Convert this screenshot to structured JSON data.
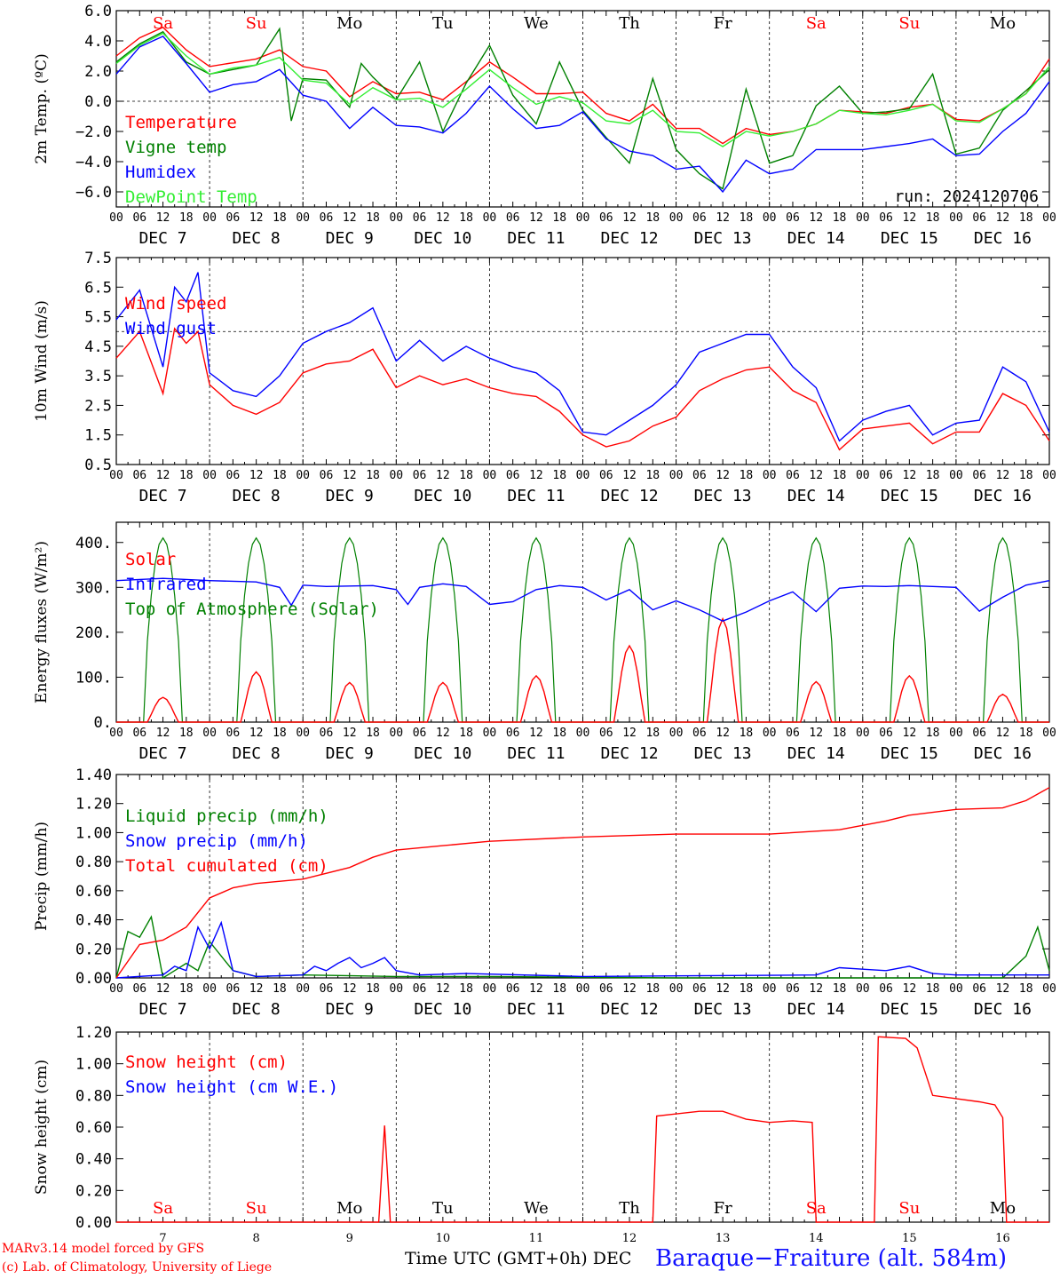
{
  "run_label": "run: 2024120706",
  "footer": {
    "model": "MARv3.14 model forced by GFS",
    "lab": "(c) Lab. of Climatology, University of Liege",
    "xlabel": "Time UTC (GMT+0h) DEC",
    "station": "Baraque−Fraiture (alt. 584m)"
  },
  "colors": {
    "red": "#ff0000",
    "green": "#008000",
    "blue": "#0000ff",
    "lightgreen": "#33ee33",
    "black": "#000000"
  },
  "hour_ticks": [
    "00",
    "06",
    "12",
    "18"
  ],
  "chart_data": [
    {
      "type": "line",
      "ylabel": "2m Temp. (ºC)",
      "ylim": [
        -7,
        6
      ],
      "yticks": [
        "6.0",
        "4.0",
        "2.0",
        "0.0",
        "−2.0",
        "−4.0",
        "−6.0"
      ],
      "ytick_values": [
        6,
        4,
        2,
        0,
        -2,
        -4,
        -6
      ],
      "ref_line": 0,
      "x_days": [
        "DEC 7",
        "DEC 8",
        "DEC 9",
        "DEC 10",
        "DEC 11",
        "DEC 12",
        "DEC 13",
        "DEC 14",
        "DEC 15",
        "DEC 16"
      ],
      "weekdays": [
        {
          "label": "Sa",
          "color": "#ff0000"
        },
        {
          "label": "Su",
          "color": "#ff0000"
        },
        {
          "label": "Mo",
          "color": "#000000"
        },
        {
          "label": "Tu",
          "color": "#000000"
        },
        {
          "label": "We",
          "color": "#000000"
        },
        {
          "label": "Th",
          "color": "#000000"
        },
        {
          "label": "Fr",
          "color": "#000000"
        },
        {
          "label": "Sa",
          "color": "#ff0000"
        },
        {
          "label": "Su",
          "color": "#ff0000"
        },
        {
          "label": "Mo",
          "color": "#000000"
        }
      ],
      "series": [
        {
          "name": "Temperature",
          "color": "#ff0000",
          "x": [
            0,
            6,
            12,
            18,
            24,
            36,
            42,
            48,
            54,
            60,
            66,
            72,
            78,
            84,
            90,
            96,
            102,
            108,
            114,
            120,
            126,
            132,
            138,
            144,
            150,
            156,
            162,
            168,
            174,
            180,
            186,
            192,
            198,
            204,
            210,
            216,
            222,
            228,
            234,
            240
          ],
          "values": [
            3.0,
            4.2,
            4.9,
            3.4,
            2.3,
            2.8,
            3.4,
            2.3,
            2.0,
            0.3,
            1.3,
            0.5,
            0.6,
            0.1,
            1.3,
            2.6,
            1.6,
            0.5,
            0.5,
            0.6,
            -0.8,
            -1.3,
            -0.2,
            -1.8,
            -1.8,
            -2.8,
            -1.8,
            -2.2,
            -2.0,
            -1.5,
            -0.6,
            -0.7,
            -0.8,
            -0.4,
            -0.2,
            -1.2,
            -1.3,
            -0.5,
            0.5,
            2.8
          ]
        },
        {
          "name": "Vigne temp",
          "color": "#008000",
          "x": [
            0,
            6,
            12,
            18,
            24,
            30,
            36,
            42,
            45,
            48,
            54,
            60,
            63,
            66,
            72,
            78,
            84,
            90,
            96,
            102,
            108,
            114,
            120,
            126,
            132,
            138,
            144,
            150,
            156,
            162,
            168,
            174,
            180,
            186,
            192,
            198,
            204,
            210,
            216,
            222,
            228,
            234,
            240
          ],
          "values": [
            2.6,
            3.8,
            4.6,
            2.6,
            1.8,
            2.1,
            2.4,
            4.8,
            -1.3,
            1.5,
            1.4,
            -0.4,
            2.5,
            1.6,
            0.1,
            2.6,
            -2.0,
            1.2,
            3.7,
            0.4,
            -1.5,
            2.6,
            -0.6,
            -2.4,
            -4.1,
            1.5,
            -3.2,
            -4.8,
            -5.8,
            0.8,
            -4.1,
            -3.6,
            -0.3,
            1.0,
            -0.8,
            -0.7,
            -0.5,
            1.8,
            -3.5,
            -3.1,
            -0.6,
            0.7,
            2.1
          ]
        },
        {
          "name": "Humidex",
          "color": "#0000ff",
          "x": [
            0,
            6,
            12,
            18,
            24,
            30,
            36,
            42,
            48,
            54,
            60,
            66,
            72,
            78,
            84,
            90,
            96,
            102,
            108,
            114,
            120,
            126,
            132,
            138,
            144,
            150,
            156,
            162,
            168,
            174,
            180,
            186,
            192,
            198,
            204,
            210,
            216,
            222,
            228,
            234,
            240
          ],
          "values": [
            1.8,
            3.6,
            4.3,
            2.5,
            0.6,
            1.1,
            1.3,
            2.1,
            0.4,
            0.0,
            -1.8,
            -0.4,
            -1.6,
            -1.7,
            -2.1,
            -0.8,
            1.0,
            -0.5,
            -1.8,
            -1.6,
            -0.7,
            -2.5,
            -3.3,
            -3.6,
            -4.5,
            -4.3,
            -6.0,
            -3.9,
            -4.8,
            -4.5,
            -3.2,
            -3.2,
            -3.2,
            -3.0,
            -2.8,
            -2.5,
            -3.6,
            -3.5,
            -2.0,
            -0.8,
            1.3
          ]
        },
        {
          "name": "DewPoint Temp",
          "color": "#33ee33",
          "x": [
            0,
            6,
            12,
            18,
            24,
            30,
            36,
            42,
            48,
            54,
            60,
            66,
            72,
            78,
            84,
            90,
            96,
            102,
            108,
            114,
            120,
            126,
            132,
            138,
            144,
            150,
            156,
            162,
            168,
            174,
            180,
            186,
            192,
            198,
            204,
            210,
            216,
            222,
            228,
            234,
            240
          ],
          "values": [
            2.5,
            3.7,
            4.5,
            3.0,
            1.8,
            2.2,
            2.4,
            2.9,
            1.4,
            1.2,
            -0.2,
            0.9,
            0.1,
            0.2,
            -0.4,
            0.8,
            2.1,
            0.9,
            -0.2,
            0.3,
            -0.1,
            -1.3,
            -1.5,
            -0.6,
            -2.0,
            -2.1,
            -3.0,
            -2.0,
            -2.3,
            -2.0,
            -1.5,
            -0.6,
            -0.8,
            -0.9,
            -0.6,
            -0.2,
            -1.3,
            -1.4,
            -0.5,
            0.5,
            2.3
          ]
        }
      ]
    },
    {
      "type": "line",
      "ylabel": "10m Wind (m/s)",
      "ylim": [
        0.5,
        7.5
      ],
      "yticks": [
        "7.5",
        "6.5",
        "5.5",
        "4.5",
        "3.5",
        "2.5",
        "1.5",
        "0.5"
      ],
      "ytick_values": [
        7.5,
        6.5,
        5.5,
        4.5,
        3.5,
        2.5,
        1.5,
        0.5
      ],
      "ref_line": 5.0,
      "x_days": [
        "DEC 7",
        "DEC 8",
        "DEC 9",
        "DEC 10",
        "DEC 11",
        "DEC 12",
        "DEC 13",
        "DEC 14",
        "DEC 15",
        "DEC 16"
      ],
      "series": [
        {
          "name": "Wind speed",
          "color": "#ff0000",
          "x": [
            0,
            6,
            12,
            15,
            18,
            21,
            24,
            30,
            36,
            42,
            48,
            54,
            60,
            66,
            72,
            78,
            84,
            90,
            96,
            102,
            108,
            114,
            120,
            126,
            132,
            138,
            144,
            150,
            156,
            162,
            168,
            174,
            180,
            186,
            192,
            198,
            204,
            210,
            216,
            222,
            228,
            234,
            240
          ],
          "values": [
            4.1,
            5.0,
            2.9,
            5.1,
            4.6,
            5.0,
            3.2,
            2.5,
            2.2,
            2.6,
            3.6,
            3.9,
            4.0,
            4.4,
            3.1,
            3.5,
            3.2,
            3.4,
            3.1,
            2.9,
            2.8,
            2.3,
            1.5,
            1.1,
            1.3,
            1.8,
            2.1,
            3.0,
            3.4,
            3.7,
            3.8,
            3.0,
            2.6,
            1.0,
            1.7,
            1.8,
            1.9,
            1.2,
            1.6,
            1.6,
            2.9,
            2.5,
            1.3
          ]
        },
        {
          "name": "Wind gust",
          "color": "#0000ff",
          "x": [
            0,
            6,
            12,
            15,
            18,
            21,
            24,
            30,
            36,
            42,
            48,
            54,
            60,
            66,
            72,
            78,
            84,
            90,
            96,
            102,
            108,
            114,
            120,
            126,
            132,
            138,
            144,
            150,
            156,
            162,
            168,
            174,
            180,
            186,
            192,
            198,
            204,
            210,
            216,
            222,
            228,
            234,
            240
          ],
          "values": [
            5.4,
            6.4,
            3.8,
            6.5,
            6.0,
            7.0,
            3.6,
            3.0,
            2.8,
            3.5,
            4.6,
            5.0,
            5.3,
            5.8,
            4.0,
            4.7,
            4.0,
            4.5,
            4.1,
            3.8,
            3.6,
            3.0,
            1.6,
            1.5,
            2.0,
            2.5,
            3.2,
            4.3,
            4.6,
            4.9,
            4.9,
            3.8,
            3.1,
            1.3,
            2.0,
            2.3,
            2.5,
            1.5,
            1.9,
            2.0,
            3.8,
            3.3,
            1.6
          ]
        }
      ]
    },
    {
      "type": "line",
      "ylabel": "Energy fluxes (W/m²)",
      "ylim": [
        0,
        445
      ],
      "yticks": [
        "400.",
        "300.",
        "200.",
        "100.",
        "0."
      ],
      "ytick_values": [
        400,
        300,
        200,
        100,
        0
      ],
      "ref_line": null,
      "x_days": [
        "DEC 7",
        "DEC 8",
        "DEC 9",
        "DEC 10",
        "DEC 11",
        "DEC 12",
        "DEC 13",
        "DEC 14",
        "DEC 15",
        "DEC 16"
      ],
      "solar_peaks": [
        55,
        112,
        88,
        88,
        103,
        170,
        230,
        90,
        103,
        62
      ],
      "toa_peak": 410,
      "series": [
        {
          "name": "Solar",
          "color": "#ff0000"
        },
        {
          "name": "Infrared",
          "color": "#0000ff",
          "x": [
            0,
            12,
            24,
            36,
            42,
            45,
            48,
            54,
            60,
            66,
            72,
            75,
            78,
            84,
            90,
            96,
            102,
            108,
            114,
            120,
            126,
            132,
            138,
            144,
            150,
            156,
            162,
            168,
            174,
            180,
            186,
            192,
            198,
            204,
            210,
            216,
            222,
            228,
            234,
            240
          ],
          "values": [
            315,
            320,
            315,
            312,
            300,
            260,
            305,
            302,
            303,
            304,
            295,
            262,
            300,
            308,
            302,
            262,
            268,
            295,
            304,
            300,
            272,
            295,
            250,
            270,
            250,
            225,
            245,
            270,
            290,
            246,
            298,
            303,
            302,
            304,
            302,
            300,
            247,
            278,
            305,
            315
          ]
        },
        {
          "name": "Top of Atmosphere (Solar)",
          "color": "#008000"
        }
      ]
    },
    {
      "type": "line",
      "ylabel": "Precip (mm/h)",
      "ylim": [
        0,
        1.4
      ],
      "yticks": [
        "1.40",
        "1.20",
        "1.00",
        "0.80",
        "0.60",
        "0.40",
        "0.20",
        "0.00"
      ],
      "ytick_values": [
        1.4,
        1.2,
        1.0,
        0.8,
        0.6,
        0.4,
        0.2,
        0.0
      ],
      "ref_line": null,
      "x_days": [
        "DEC 7",
        "DEC 8",
        "DEC 9",
        "DEC 10",
        "DEC 11",
        "DEC 12",
        "DEC 13",
        "DEC 14",
        "DEC 15",
        "DEC 16"
      ],
      "series": [
        {
          "name": "Liquid precip (mm/h)",
          "color": "#008000",
          "x": [
            0,
            3,
            6,
            9,
            12,
            15,
            18,
            21,
            24,
            30,
            36,
            48,
            72,
            96,
            144,
            192,
            228,
            234,
            237,
            240
          ],
          "values": [
            0.0,
            0.32,
            0.28,
            0.42,
            0.0,
            0.05,
            0.1,
            0.05,
            0.25,
            0.05,
            0.01,
            0.02,
            0.01,
            0.01,
            0.0,
            0.0,
            0.0,
            0.15,
            0.35,
            0.05
          ]
        },
        {
          "name": "Snow precip (mm/h)",
          "color": "#0000ff",
          "x": [
            0,
            12,
            15,
            18,
            21,
            24,
            27,
            30,
            36,
            48,
            51,
            54,
            57,
            60,
            63,
            66,
            69,
            72,
            78,
            90,
            120,
            180,
            186,
            192,
            198,
            204,
            210,
            216,
            222,
            240
          ],
          "values": [
            0.0,
            0.02,
            0.08,
            0.05,
            0.35,
            0.2,
            0.38,
            0.05,
            0.01,
            0.02,
            0.08,
            0.05,
            0.1,
            0.14,
            0.07,
            0.1,
            0.14,
            0.05,
            0.02,
            0.03,
            0.01,
            0.02,
            0.07,
            0.06,
            0.05,
            0.08,
            0.03,
            0.02,
            0.02,
            0.02
          ]
        },
        {
          "name": "Total cumulated (cm)",
          "color": "#ff0000",
          "x": [
            0,
            6,
            12,
            18,
            24,
            30,
            36,
            48,
            60,
            66,
            72,
            84,
            96,
            120,
            144,
            168,
            186,
            198,
            204,
            216,
            228,
            234,
            240
          ],
          "values": [
            0.0,
            0.23,
            0.26,
            0.35,
            0.55,
            0.62,
            0.65,
            0.68,
            0.76,
            0.83,
            0.88,
            0.91,
            0.94,
            0.97,
            0.99,
            0.99,
            1.02,
            1.08,
            1.12,
            1.16,
            1.17,
            1.22,
            1.31
          ]
        }
      ]
    },
    {
      "type": "line",
      "ylabel": "Snow height (cm)",
      "ylim": [
        0,
        1.2
      ],
      "yticks": [
        "1.20",
        "1.00",
        "0.80",
        "0.60",
        "0.40",
        "0.20",
        "0.00"
      ],
      "ytick_values": [
        1.2,
        1.0,
        0.8,
        0.6,
        0.4,
        0.2,
        0.0
      ],
      "ref_line": null,
      "x_days": [
        "7",
        "8",
        "9",
        "10",
        "11",
        "12",
        "13",
        "14",
        "15",
        "16"
      ],
      "series": [
        {
          "name": "Snow height (cm)",
          "color": "#ff0000",
          "x": [
            0,
            67.5,
            69,
            70.5,
            138,
            139,
            150,
            156,
            162,
            168,
            174,
            179,
            180,
            181,
            195,
            196,
            203,
            206,
            210,
            216,
            222,
            226,
            228,
            229,
            240
          ],
          "values": [
            0,
            0,
            0.61,
            0,
            0,
            0.67,
            0.7,
            0.7,
            0.65,
            0.63,
            0.64,
            0.63,
            0,
            0,
            0,
            1.17,
            1.16,
            1.1,
            0.8,
            0.78,
            0.76,
            0.74,
            0.66,
            0,
            0
          ]
        },
        {
          "name": "Snow height (cm W.E.)",
          "color": "#0000ff"
        }
      ]
    }
  ]
}
